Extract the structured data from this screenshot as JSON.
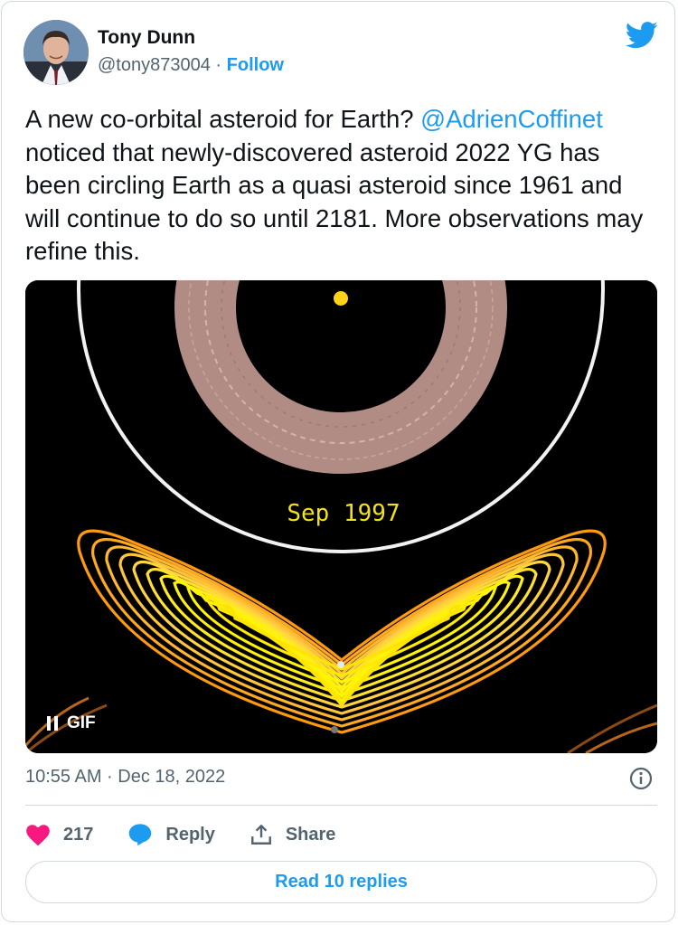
{
  "author": {
    "name": "Tony Dunn",
    "handle": "@tony873004",
    "separator": "·",
    "follow_label": "Follow"
  },
  "tweet": {
    "text_before": "A new co-orbital asteroid for Earth? ",
    "mention": "@AdrienCoffinet",
    "text_after": " noticed that newly-discovered asteroid 2022 YG has been circling Earth as a quasi asteroid since 1961 and will continue to do so until 2181. More observations may refine this."
  },
  "media": {
    "date_label": "Sep 1997",
    "gif_label": "GIF"
  },
  "meta": {
    "timestamp": "10:55 AM · Dec 18, 2022"
  },
  "actions": {
    "like_count": "217",
    "reply_label": "Reply",
    "share_label": "Share"
  },
  "read_replies_label": "Read 10 replies",
  "colors": {
    "accent": "#1d9bf0",
    "like": "#f91880",
    "muted": "#536471",
    "border": "#cfd9de",
    "orbit_yellow": "#ffee00",
    "orbit_orange": "#ff8c00",
    "ring_pink": "#b08c84"
  }
}
